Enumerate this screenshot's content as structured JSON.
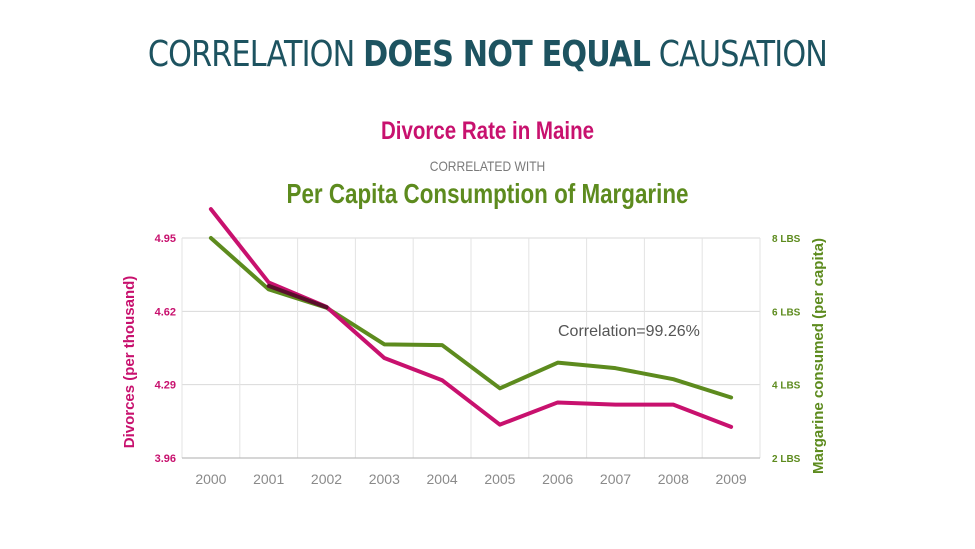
{
  "headline": {
    "part1": "CORRELATION ",
    "part2": "DOES NOT EQUAL",
    "part3": " CAUSATION",
    "color": "#1d5360"
  },
  "chart_data": {
    "type": "line",
    "title": "Divorce Rate in Maine",
    "subtitle": "CORRELATED WITH",
    "title2": "Per Capita Consumption of Margarine",
    "x": [
      "2000",
      "2001",
      "2002",
      "2003",
      "2004",
      "2005",
      "2006",
      "2007",
      "2008",
      "2009"
    ],
    "y_left": {
      "label": "Divorces (per thousand)",
      "ticks": [
        "4.95",
        "4.62",
        "4.29",
        "3.96"
      ],
      "tick_values": [
        4.95,
        4.62,
        4.29,
        3.96
      ],
      "range": [
        3.96,
        4.95
      ],
      "color": "#c8116e"
    },
    "y_right": {
      "label": "Margarine consumed (per capita)",
      "ticks": [
        "8 LBS",
        "6 LBS",
        "4 LBS",
        "2 LBS"
      ],
      "tick_values": [
        8,
        6,
        4,
        2
      ],
      "range": [
        2,
        8
      ],
      "color": "#5d8b1e"
    },
    "series": [
      {
        "name": "Divorce Rate in Maine",
        "axis": "left",
        "color": "#c8116e",
        "values": [
          5.08,
          4.75,
          4.64,
          4.41,
          4.31,
          4.11,
          4.21,
          4.2,
          4.2,
          4.1
        ]
      },
      {
        "name": "Per Capita Consumption of Margarine",
        "axis": "right",
        "color": "#5d8b1e",
        "values": [
          8.0,
          6.6,
          6.1,
          5.1,
          5.08,
          3.9,
          4.6,
          4.45,
          4.15,
          3.65
        ]
      }
    ],
    "overlap_color": "#5a0f2c",
    "annotation": "Correlation=99.26%",
    "grid": true
  }
}
